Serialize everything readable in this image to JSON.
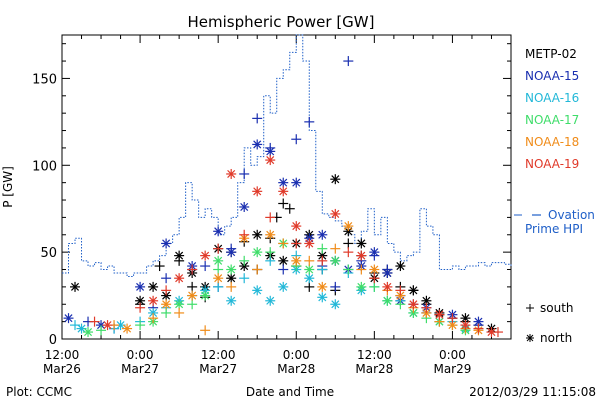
{
  "chart_data": {
    "type": "scatter",
    "title": "Hemispheric Power [GW]",
    "ylabel": "P [GW]",
    "xlabel": "Date and Time",
    "footer_left": "Plot: CCMC",
    "footer_right": "2012/03/29 11:15:08",
    "ylim": [
      0,
      175
    ],
    "yticks": [
      0,
      50,
      100,
      150
    ],
    "xlim_hours": [
      -12,
      57
    ],
    "xticks": [
      {
        "hour": -12,
        "time": "12:00",
        "date": "Mar26"
      },
      {
        "hour": 0,
        "time": "0:00",
        "date": "Mar27"
      },
      {
        "hour": 12,
        "time": "12:00",
        "date": "Mar27"
      },
      {
        "hour": 24,
        "time": "0:00",
        "date": "Mar28"
      },
      {
        "hour": 36,
        "time": "12:00",
        "date": "Mar28"
      },
      {
        "hour": 48,
        "time": "0:00",
        "date": "Mar29"
      }
    ],
    "legend_placement": "right",
    "marker_legend": [
      {
        "marker": "+",
        "label": "south"
      },
      {
        "marker": "*",
        "label": "north"
      }
    ],
    "ovation": {
      "name": "Ovation Prime HPI",
      "label_line1": "Ovation",
      "label_line2": "Prime HPI",
      "color": "#1f5fc8",
      "x": [
        -12,
        -11,
        -10,
        -9,
        -8,
        -7,
        -6,
        -5,
        -4,
        -3,
        -2,
        -1,
        0,
        1,
        2,
        3,
        4,
        5,
        6,
        7,
        8,
        9,
        10,
        11,
        12,
        13,
        14,
        15,
        16,
        17,
        18,
        19,
        20,
        21,
        22,
        23,
        24,
        25,
        26,
        27,
        28,
        29,
        30,
        31,
        32,
        33,
        34,
        35,
        36,
        37,
        38,
        39,
        40,
        41,
        42,
        43,
        44,
        45,
        46,
        47,
        48,
        49,
        50,
        51,
        52,
        53,
        54,
        55,
        56,
        57
      ],
      "y": [
        38,
        55,
        58,
        45,
        42,
        44,
        40,
        42,
        38,
        38,
        36,
        38,
        38,
        42,
        45,
        48,
        55,
        60,
        70,
        90,
        80,
        70,
        75,
        70,
        60,
        65,
        70,
        90,
        110,
        100,
        105,
        140,
        130,
        150,
        155,
        165,
        175,
        160,
        120,
        85,
        72,
        70,
        68,
        65,
        60,
        55,
        62,
        75,
        60,
        70,
        55,
        50,
        45,
        48,
        50,
        75,
        65,
        60,
        40,
        40,
        42,
        40,
        42,
        42,
        44,
        42,
        44,
        44,
        43,
        42
      ]
    },
    "series": [
      {
        "name": "METP-02",
        "color": "#000000",
        "south": [
          [
            0,
            20
          ],
          [
            3,
            42
          ],
          [
            6,
            45
          ],
          [
            8,
            30
          ],
          [
            10,
            24
          ],
          [
            14,
            50
          ],
          [
            16,
            56
          ],
          [
            18,
            40
          ],
          [
            20,
            58
          ],
          [
            21,
            70
          ],
          [
            22,
            78
          ],
          [
            23,
            75
          ],
          [
            24,
            42
          ],
          [
            26,
            30
          ],
          [
            28,
            40
          ],
          [
            30,
            28
          ],
          [
            32,
            55
          ],
          [
            34,
            48
          ],
          [
            36,
            38
          ],
          [
            38,
            40
          ],
          [
            40,
            30
          ],
          [
            42,
            28
          ],
          [
            44,
            20
          ],
          [
            46,
            14
          ],
          [
            48,
            12
          ],
          [
            50,
            10
          ],
          [
            52,
            8
          ]
        ],
        "north": [
          [
            -10,
            30
          ],
          [
            0,
            22
          ],
          [
            2,
            30
          ],
          [
            4,
            25
          ],
          [
            6,
            48
          ],
          [
            8,
            38
          ],
          [
            10,
            30
          ],
          [
            12,
            52
          ],
          [
            14,
            35
          ],
          [
            16,
            42
          ],
          [
            18,
            60
          ],
          [
            20,
            48
          ],
          [
            22,
            45
          ],
          [
            24,
            55
          ],
          [
            26,
            60
          ],
          [
            28,
            48
          ],
          [
            30,
            92
          ],
          [
            32,
            62
          ],
          [
            34,
            55
          ],
          [
            36,
            35
          ],
          [
            38,
            38
          ],
          [
            40,
            42
          ],
          [
            42,
            28
          ],
          [
            44,
            22
          ],
          [
            46,
            15
          ],
          [
            50,
            12
          ],
          [
            54,
            6
          ]
        ]
      },
      {
        "name": "NOAA-15",
        "color": "#1a2fb0",
        "south": [
          [
            -8,
            10
          ],
          [
            -4,
            6
          ],
          [
            2,
            18
          ],
          [
            4,
            35
          ],
          [
            8,
            40
          ],
          [
            10,
            42
          ],
          [
            12,
            30
          ],
          [
            14,
            52
          ],
          [
            16,
            95
          ],
          [
            18,
            127
          ],
          [
            20,
            110
          ],
          [
            22,
            40
          ],
          [
            24,
            115
          ],
          [
            26,
            125
          ],
          [
            28,
            42
          ],
          [
            30,
            30
          ],
          [
            32,
            160
          ],
          [
            34,
            45
          ],
          [
            36,
            48
          ],
          [
            38,
            40
          ],
          [
            40,
            25
          ],
          [
            42,
            20
          ],
          [
            44,
            15
          ],
          [
            48,
            12
          ],
          [
            52,
            8
          ]
        ],
        "north": [
          [
            -11,
            12
          ],
          [
            -6,
            8
          ],
          [
            0,
            30
          ],
          [
            4,
            55
          ],
          [
            8,
            42
          ],
          [
            12,
            62
          ],
          [
            14,
            50
          ],
          [
            16,
            76
          ],
          [
            18,
            112
          ],
          [
            20,
            108
          ],
          [
            22,
            90
          ],
          [
            24,
            90
          ],
          [
            26,
            58
          ],
          [
            28,
            60
          ],
          [
            30,
            45
          ],
          [
            32,
            40
          ],
          [
            34,
            42
          ],
          [
            36,
            50
          ],
          [
            38,
            38
          ],
          [
            40,
            22
          ],
          [
            44,
            18
          ],
          [
            48,
            14
          ],
          [
            52,
            10
          ]
        ]
      },
      {
        "name": "NOAA-16",
        "color": "#22b8d8",
        "south": [
          [
            -10,
            8
          ],
          [
            -4,
            6
          ],
          [
            0,
            10
          ],
          [
            4,
            18
          ],
          [
            8,
            25
          ],
          [
            12,
            30
          ],
          [
            16,
            35
          ],
          [
            20,
            45
          ],
          [
            24,
            48
          ],
          [
            28,
            40
          ],
          [
            32,
            38
          ],
          [
            36,
            30
          ],
          [
            40,
            22
          ],
          [
            44,
            15
          ],
          [
            48,
            10
          ],
          [
            52,
            6
          ]
        ],
        "north": [
          [
            -9,
            6
          ],
          [
            -3,
            8
          ],
          [
            2,
            15
          ],
          [
            6,
            22
          ],
          [
            10,
            28
          ],
          [
            14,
            22
          ],
          [
            18,
            28
          ],
          [
            20,
            22
          ],
          [
            22,
            30
          ],
          [
            24,
            40
          ],
          [
            26,
            35
          ],
          [
            28,
            24
          ],
          [
            30,
            20
          ],
          [
            34,
            28
          ],
          [
            38,
            22
          ],
          [
            42,
            15
          ],
          [
            46,
            10
          ],
          [
            50,
            6
          ]
        ]
      },
      {
        "name": "NOAA-17",
        "color": "#3fdd6a",
        "south": [
          [
            -6,
            5
          ],
          [
            0,
            8
          ],
          [
            4,
            15
          ],
          [
            8,
            20
          ],
          [
            12,
            40
          ],
          [
            16,
            45
          ],
          [
            20,
            50
          ],
          [
            24,
            42
          ],
          [
            28,
            52
          ],
          [
            32,
            40
          ],
          [
            36,
            30
          ],
          [
            40,
            20
          ],
          [
            44,
            12
          ],
          [
            48,
            8
          ]
        ],
        "north": [
          [
            -8,
            4
          ],
          [
            2,
            10
          ],
          [
            6,
            20
          ],
          [
            10,
            25
          ],
          [
            12,
            45
          ],
          [
            14,
            40
          ],
          [
            18,
            50
          ],
          [
            22,
            55
          ],
          [
            26,
            40
          ],
          [
            30,
            45
          ],
          [
            34,
            30
          ],
          [
            38,
            22
          ],
          [
            42,
            15
          ],
          [
            46,
            10
          ],
          [
            50,
            5
          ]
        ]
      },
      {
        "name": "NOAA-18",
        "color": "#f08c1a",
        "south": [
          [
            -4,
            8
          ],
          [
            2,
            12
          ],
          [
            6,
            15
          ],
          [
            10,
            5
          ],
          [
            14,
            30
          ],
          [
            18,
            40
          ],
          [
            22,
            55
          ],
          [
            26,
            45
          ],
          [
            30,
            52
          ],
          [
            34,
            40
          ],
          [
            38,
            28
          ],
          [
            42,
            18
          ],
          [
            46,
            10
          ],
          [
            50,
            6
          ]
        ],
        "north": [
          [
            -2,
            6
          ],
          [
            4,
            20
          ],
          [
            8,
            25
          ],
          [
            12,
            35
          ],
          [
            16,
            58
          ],
          [
            20,
            60
          ],
          [
            24,
            45
          ],
          [
            28,
            30
          ],
          [
            32,
            65
          ],
          [
            36,
            40
          ],
          [
            40,
            25
          ],
          [
            44,
            15
          ],
          [
            48,
            8
          ],
          [
            52,
            5
          ]
        ]
      },
      {
        "name": "NOAA-19",
        "color": "#e03a2a",
        "south": [
          [
            -7,
            10
          ],
          [
            0,
            18
          ],
          [
            4,
            28
          ],
          [
            8,
            40
          ],
          [
            12,
            52
          ],
          [
            16,
            60
          ],
          [
            20,
            70
          ],
          [
            24,
            55
          ],
          [
            28,
            45
          ],
          [
            32,
            50
          ],
          [
            36,
            35
          ],
          [
            40,
            28
          ],
          [
            44,
            18
          ],
          [
            48,
            12
          ],
          [
            52,
            6
          ],
          [
            55,
            4
          ]
        ],
        "north": [
          [
            -5,
            8
          ],
          [
            2,
            22
          ],
          [
            6,
            35
          ],
          [
            10,
            48
          ],
          [
            14,
            95
          ],
          [
            18,
            85
          ],
          [
            20,
            103
          ],
          [
            22,
            85
          ],
          [
            24,
            65
          ],
          [
            26,
            55
          ],
          [
            30,
            72
          ],
          [
            34,
            48
          ],
          [
            38,
            30
          ],
          [
            42,
            20
          ],
          [
            46,
            14
          ],
          [
            50,
            8
          ],
          [
            54,
            4
          ]
        ]
      }
    ]
  }
}
